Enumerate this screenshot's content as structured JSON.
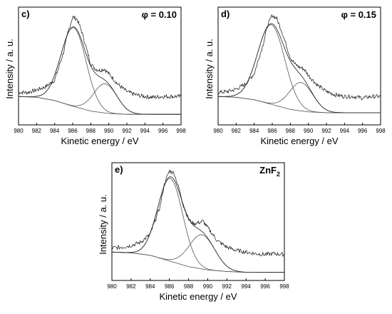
{
  "chart_data": [
    {
      "type": "line",
      "panel_label": "c)",
      "annotation": "φ = 0.10",
      "xlabel": "Kinetic energy / eV",
      "ylabel": "Intensity / a. u.",
      "xlim": [
        980,
        998
      ],
      "xticks": [
        "980",
        "982",
        "984",
        "986",
        "988",
        "990",
        "992",
        "994",
        "996",
        "998"
      ],
      "yticks_shown": false,
      "series": [
        {
          "values_role": "measured",
          "x": [
            980,
            981,
            982,
            983,
            984,
            985,
            985.5,
            986,
            986.5,
            987,
            987.5,
            988,
            988.5,
            989,
            989.5,
            990,
            990.5,
            991,
            992,
            993,
            994,
            995,
            996,
            997,
            998
          ],
          "y": [
            0.05,
            0.05,
            0.08,
            0.12,
            0.2,
            0.55,
            0.8,
            0.98,
            0.95,
            0.8,
            0.6,
            0.4,
            0.34,
            0.32,
            0.34,
            0.28,
            0.22,
            0.15,
            0.06,
            0.02,
            0.0,
            -0.01,
            0.0,
            0.0,
            0.0
          ]
        },
        {
          "values_role": "peak-1",
          "center": 986.1,
          "height": 0.97,
          "width": 1.4
        },
        {
          "values_role": "peak-2",
          "center": 989.6,
          "height": 0.36,
          "width": 1.3
        },
        {
          "values_role": "background",
          "x": [
            980,
            982,
            984,
            986,
            988,
            990,
            992,
            994,
            996,
            998
          ],
          "y": [
            0.0,
            -0.01,
            -0.05,
            -0.12,
            -0.18,
            -0.21,
            -0.22,
            -0.22,
            -0.22,
            -0.22
          ]
        }
      ]
    },
    {
      "type": "line",
      "panel_label": "d)",
      "annotation": "φ = 0.15",
      "xlabel": "Kinetic energy / eV",
      "ylabel": "Intensity / a. u.",
      "xlim": [
        980,
        998
      ],
      "xticks": [
        "980",
        "982",
        "984",
        "986",
        "988",
        "990",
        "992",
        "994",
        "996",
        "998"
      ],
      "yticks_shown": false,
      "series": [
        {
          "values_role": "measured",
          "x": [
            980,
            981,
            982,
            983,
            984,
            985,
            985.5,
            986,
            986.5,
            987,
            987.5,
            988,
            988.5,
            989,
            989.5,
            990,
            991,
            992,
            993,
            994,
            995,
            996,
            997,
            998
          ],
          "y": [
            0.05,
            0.06,
            0.09,
            0.15,
            0.28,
            0.65,
            0.88,
            1.0,
            0.96,
            0.82,
            0.65,
            0.48,
            0.4,
            0.36,
            0.34,
            0.26,
            0.14,
            0.06,
            0.02,
            0.0,
            0.0,
            -0.02,
            0.0,
            0.0
          ]
        },
        {
          "values_role": "peak-1",
          "center": 985.9,
          "height": 0.98,
          "width": 1.5
        },
        {
          "values_role": "peak-2",
          "center": 989.2,
          "height": 0.35,
          "width": 1.3
        },
        {
          "values_role": "background",
          "x": [
            980,
            982,
            984,
            986,
            988,
            990,
            992,
            994,
            996,
            998
          ],
          "y": [
            0.0,
            -0.01,
            -0.04,
            -0.1,
            -0.16,
            -0.19,
            -0.2,
            -0.2,
            -0.2,
            -0.2
          ]
        }
      ]
    },
    {
      "type": "line",
      "panel_label": "e)",
      "annotation_main": "ZnF",
      "annotation_sub": "2",
      "xlabel": "Kinetic energy / eV",
      "ylabel": "Intensity / a. u.",
      "xlim": [
        980,
        998
      ],
      "xticks": [
        "980",
        "982",
        "984",
        "986",
        "988",
        "990",
        "992",
        "994",
        "996",
        "998"
      ],
      "yticks_shown": false,
      "series": [
        {
          "values_role": "measured",
          "x": [
            980,
            981,
            982,
            983,
            984,
            985,
            985.5,
            986,
            986.5,
            987,
            987.5,
            988,
            988.5,
            989,
            989.5,
            990,
            990.5,
            991,
            992,
            993,
            994,
            995,
            996,
            997,
            998
          ],
          "y": [
            0.05,
            0.06,
            0.08,
            0.12,
            0.22,
            0.55,
            0.85,
            1.0,
            0.97,
            0.78,
            0.56,
            0.4,
            0.35,
            0.36,
            0.38,
            0.3,
            0.22,
            0.14,
            0.06,
            0.02,
            0.0,
            -0.02,
            -0.03,
            -0.02,
            -0.03
          ]
        },
        {
          "values_role": "peak-1",
          "center": 986.1,
          "height": 1.02,
          "width": 1.3
        },
        {
          "values_role": "peak-2",
          "center": 989.4,
          "height": 0.42,
          "width": 1.35
        },
        {
          "values_role": "background",
          "x": [
            980,
            982,
            984,
            986,
            988,
            990,
            992,
            994,
            996,
            998
          ],
          "y": [
            0.0,
            -0.01,
            -0.04,
            -0.11,
            -0.18,
            -0.22,
            -0.24,
            -0.25,
            -0.25,
            -0.25
          ]
        }
      ]
    }
  ]
}
